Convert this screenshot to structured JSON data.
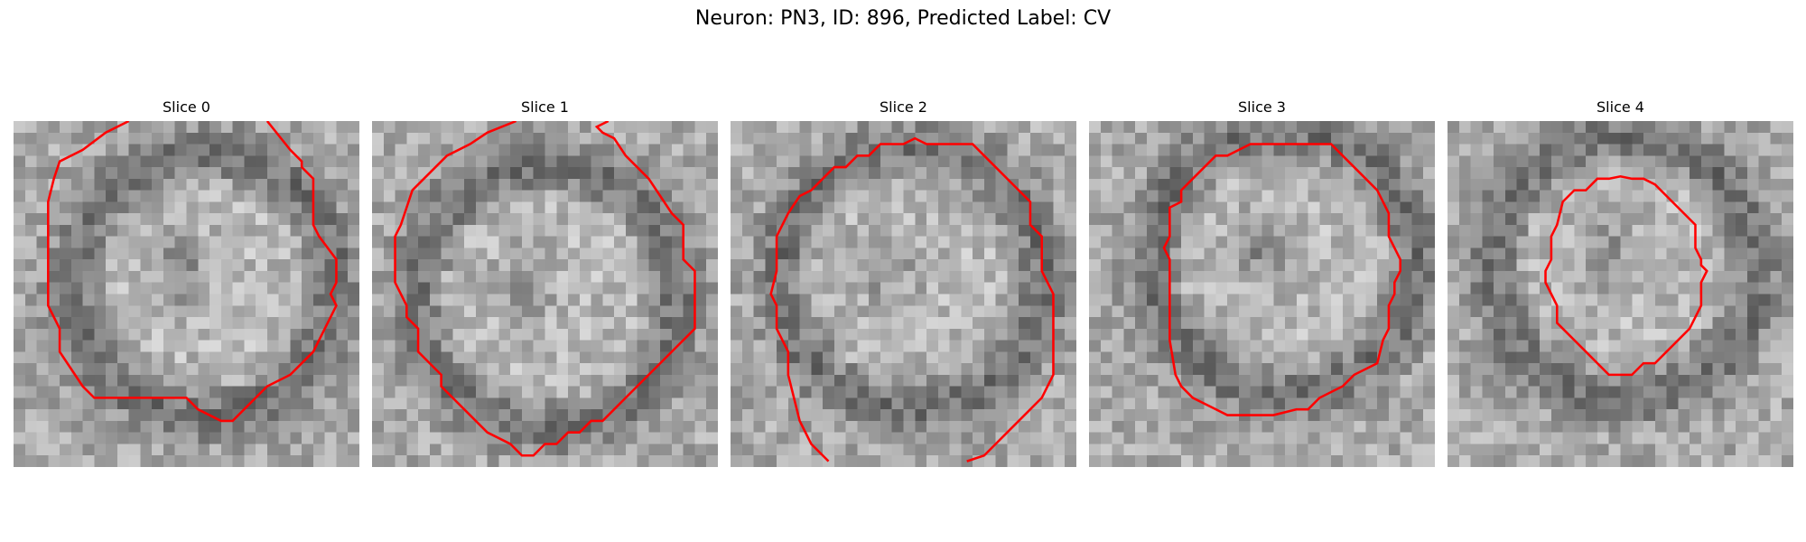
{
  "title": "Neuron: PN3, ID: 896, Predicted Label: CV",
  "grid": 30,
  "contour_color": "#ff0000",
  "panels": [
    {
      "label": "Slice 0",
      "seed": 11,
      "contour": [
        [
          10,
          0
        ],
        [
          8,
          1
        ],
        [
          6,
          2.5
        ],
        [
          4,
          3.5
        ],
        [
          3.5,
          5
        ],
        [
          3,
          7
        ],
        [
          3,
          16
        ],
        [
          4,
          18
        ],
        [
          4,
          20
        ],
        [
          5,
          21.5
        ],
        [
          6,
          23
        ],
        [
          7,
          24
        ],
        [
          8,
          24
        ],
        [
          15,
          24
        ],
        [
          16,
          25
        ],
        [
          18,
          26
        ],
        [
          19,
          26
        ],
        [
          20,
          25
        ],
        [
          22,
          23
        ],
        [
          24,
          22
        ],
        [
          26,
          20
        ],
        [
          27,
          18
        ],
        [
          28,
          16
        ],
        [
          27.5,
          15
        ],
        [
          28,
          14
        ],
        [
          28,
          12
        ],
        [
          26.5,
          10
        ],
        [
          26,
          9
        ],
        [
          26,
          5
        ],
        [
          25,
          4
        ],
        [
          25,
          3.5
        ],
        [
          24,
          2.5
        ],
        [
          22,
          0
        ]
      ],
      "closed": false
    },
    {
      "label": "Slice 1",
      "seed": 23,
      "contour": [
        [
          12.5,
          0
        ],
        [
          10,
          1
        ],
        [
          8.5,
          2
        ],
        [
          6.5,
          3
        ],
        [
          5,
          4.5
        ],
        [
          3.5,
          6
        ],
        [
          3,
          7.5
        ],
        [
          2.5,
          9
        ],
        [
          2,
          10
        ],
        [
          2,
          14
        ],
        [
          3,
          16
        ],
        [
          3,
          17
        ],
        [
          4,
          18
        ],
        [
          4,
          20
        ],
        [
          5,
          21
        ],
        [
          6,
          22
        ],
        [
          6,
          23
        ],
        [
          8,
          25
        ],
        [
          9,
          26
        ],
        [
          10,
          27
        ],
        [
          12,
          28
        ],
        [
          13,
          29
        ],
        [
          14,
          29
        ],
        [
          15,
          28
        ],
        [
          16,
          28
        ],
        [
          17,
          27
        ],
        [
          18,
          27
        ],
        [
          19,
          26
        ],
        [
          20,
          26
        ],
        [
          21,
          25
        ],
        [
          22,
          24
        ],
        [
          23,
          23
        ],
        [
          24,
          22
        ],
        [
          25,
          21
        ],
        [
          27,
          19
        ],
        [
          28,
          18
        ],
        [
          28,
          14
        ],
        [
          28,
          13
        ],
        [
          27,
          12
        ],
        [
          27,
          9
        ],
        [
          26,
          8
        ],
        [
          25,
          6.5
        ],
        [
          24,
          5
        ],
        [
          23,
          4
        ],
        [
          22,
          3
        ],
        [
          21,
          1.5
        ],
        [
          20,
          1
        ],
        [
          19.5,
          0.5
        ],
        [
          20.5,
          0
        ]
      ],
      "closed": false
    },
    {
      "label": "Slice 2",
      "seed": 37,
      "contour": [
        [
          8.5,
          29.5
        ],
        [
          7,
          28
        ],
        [
          6,
          26
        ],
        [
          5,
          22
        ],
        [
          5,
          20
        ],
        [
          4,
          18
        ],
        [
          4,
          16
        ],
        [
          3.5,
          15
        ],
        [
          4,
          13
        ],
        [
          4,
          10
        ],
        [
          5,
          8
        ],
        [
          6,
          6.5
        ],
        [
          7,
          6
        ],
        [
          8,
          5
        ],
        [
          9,
          4
        ],
        [
          10,
          4
        ],
        [
          11,
          3
        ],
        [
          12,
          3
        ],
        [
          13,
          2
        ],
        [
          15,
          2
        ],
        [
          16,
          1.5
        ],
        [
          17,
          2
        ],
        [
          21,
          2
        ],
        [
          22,
          3
        ],
        [
          23,
          4
        ],
        [
          25,
          6
        ],
        [
          26,
          7
        ],
        [
          26,
          9
        ],
        [
          27,
          10
        ],
        [
          27,
          13
        ],
        [
          28,
          15
        ],
        [
          28,
          20
        ],
        [
          28,
          22
        ],
        [
          27,
          24
        ],
        [
          26,
          25
        ],
        [
          25,
          26
        ],
        [
          24,
          27
        ],
        [
          23,
          28
        ],
        [
          22,
          29
        ],
        [
          20.5,
          29.5
        ]
      ],
      "closed": false
    },
    {
      "label": "Slice 3",
      "seed": 53,
      "contour": [
        [
          16,
          2
        ],
        [
          15,
          2
        ],
        [
          14,
          2
        ],
        [
          13,
          2.5
        ],
        [
          12,
          3
        ],
        [
          11,
          3
        ],
        [
          10,
          4
        ],
        [
          9,
          5
        ],
        [
          8,
          6
        ],
        [
          8,
          7
        ],
        [
          7,
          7.5
        ],
        [
          7,
          10
        ],
        [
          6.5,
          11
        ],
        [
          7,
          12
        ],
        [
          7,
          18
        ],
        [
          7,
          19
        ],
        [
          7.5,
          22
        ],
        [
          8,
          23
        ],
        [
          9,
          24
        ],
        [
          11,
          25
        ],
        [
          12,
          25.5
        ],
        [
          16,
          25.5
        ],
        [
          18,
          25
        ],
        [
          19,
          25
        ],
        [
          20,
          24
        ],
        [
          22,
          23
        ],
        [
          23,
          22
        ],
        [
          25,
          21
        ],
        [
          25.5,
          19
        ],
        [
          26,
          18
        ],
        [
          26,
          16
        ],
        [
          26.5,
          15
        ],
        [
          26.5,
          14
        ],
        [
          27,
          13
        ],
        [
          27,
          12
        ],
        [
          26.5,
          11
        ],
        [
          26,
          10
        ],
        [
          26,
          8
        ],
        [
          25,
          6
        ],
        [
          23.5,
          4.5
        ],
        [
          23,
          4
        ],
        [
          22,
          3
        ],
        [
          21,
          2
        ],
        [
          20,
          2
        ],
        [
          17,
          2
        ],
        [
          16,
          2
        ]
      ],
      "closed": true
    },
    {
      "label": "Slice 4",
      "seed": 71,
      "contour": [
        [
          13,
          5
        ],
        [
          12,
          6
        ],
        [
          11,
          6
        ],
        [
          10,
          7
        ],
        [
          9.5,
          9
        ],
        [
          9,
          10
        ],
        [
          9,
          12
        ],
        [
          8.5,
          13
        ],
        [
          8.5,
          14
        ],
        [
          9,
          15
        ],
        [
          9.5,
          16
        ],
        [
          9.5,
          17.5
        ],
        [
          10.5,
          18.5
        ],
        [
          12,
          20
        ],
        [
          13,
          21
        ],
        [
          14,
          22
        ],
        [
          16,
          22
        ],
        [
          17,
          21
        ],
        [
          18,
          21
        ],
        [
          19,
          20
        ],
        [
          20,
          19
        ],
        [
          21,
          18
        ],
        [
          21.5,
          17
        ],
        [
          22,
          16
        ],
        [
          22,
          14
        ],
        [
          22.5,
          13
        ],
        [
          22,
          12.5
        ],
        [
          22,
          12
        ],
        [
          21.5,
          11
        ],
        [
          21.5,
          9
        ],
        [
          20.5,
          8
        ],
        [
          19,
          6.5
        ],
        [
          18,
          5.5
        ],
        [
          17,
          5
        ],
        [
          16,
          5
        ],
        [
          15,
          4.8
        ],
        [
          14,
          5
        ],
        [
          13,
          5
        ]
      ],
      "closed": true
    }
  ]
}
